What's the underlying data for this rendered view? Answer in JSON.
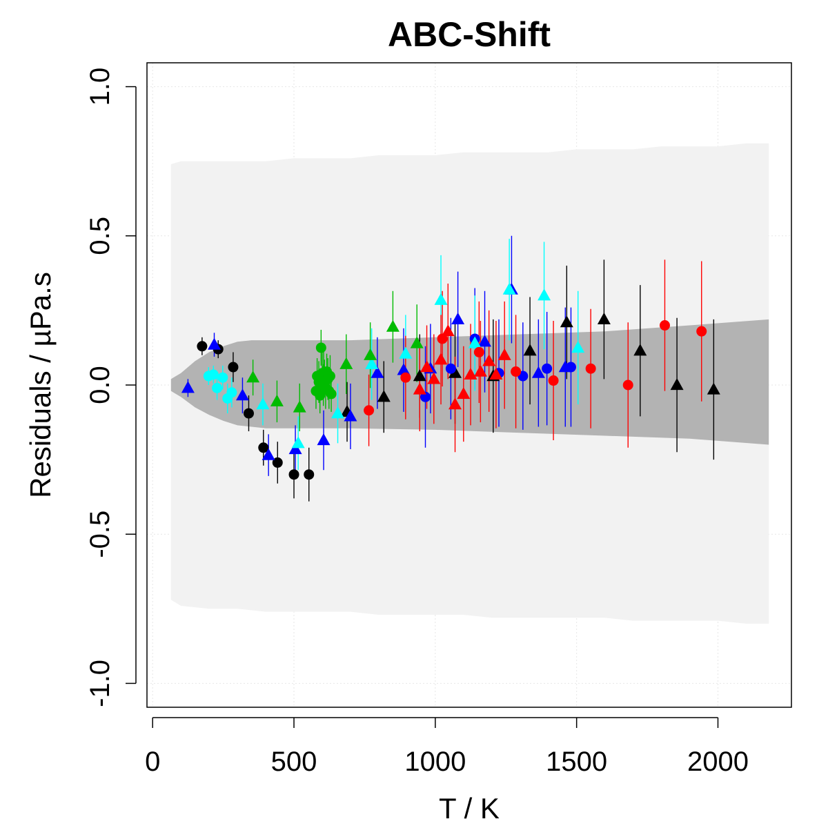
{
  "chart_data": {
    "type": "scatter",
    "title": "ABC-Shift",
    "xlabel": "T / K",
    "ylabel": "Residuals / µPa.s",
    "xlim": [
      -20,
      2260
    ],
    "ylim": [
      -1.08,
      1.08
    ],
    "x_ticks": [
      0,
      500,
      1000,
      1500,
      2000
    ],
    "x_tick_labels": [
      "0",
      "500",
      "1000",
      "1500",
      "2000"
    ],
    "y_ticks": [
      -1.0,
      -0.5,
      0.0,
      0.5,
      1.0
    ],
    "y_tick_labels": [
      "-1.0",
      "-0.5",
      "0.0",
      "0.5",
      "1.0"
    ],
    "grid": true,
    "colors": {
      "black": "#000000",
      "blue": "#0000ff",
      "cyan": "#00ffff",
      "green": "#00bb00",
      "red": "#ff0000",
      "outer_band": "#f2f2f2",
      "inner_band": "#b3b3b3",
      "grid": "#e6e6e6"
    },
    "outer_band": {
      "x": [
        65,
        100,
        200,
        300,
        400,
        500,
        600,
        700,
        800,
        900,
        1000,
        1100,
        1200,
        1300,
        1400,
        1500,
        1600,
        1700,
        1800,
        1900,
        2000,
        2100,
        2180
      ],
      "upper": [
        0.74,
        0.75,
        0.75,
        0.75,
        0.75,
        0.76,
        0.76,
        0.76,
        0.77,
        0.77,
        0.77,
        0.78,
        0.78,
        0.78,
        0.78,
        0.79,
        0.79,
        0.79,
        0.8,
        0.8,
        0.8,
        0.81,
        0.81
      ],
      "lower": [
        -0.72,
        -0.74,
        -0.75,
        -0.75,
        -0.76,
        -0.76,
        -0.76,
        -0.76,
        -0.77,
        -0.77,
        -0.77,
        -0.77,
        -0.78,
        -0.78,
        -0.78,
        -0.78,
        -0.78,
        -0.79,
        -0.79,
        -0.79,
        -0.79,
        -0.8,
        -0.8
      ]
    },
    "inner_band": {
      "x": [
        65,
        100,
        150,
        200,
        250,
        300,
        350,
        400,
        500,
        700,
        1000,
        1300,
        1600,
        1900,
        2180
      ],
      "upper": [
        0.02,
        0.04,
        0.08,
        0.11,
        0.13,
        0.145,
        0.15,
        0.15,
        0.15,
        0.15,
        0.16,
        0.17,
        0.18,
        0.2,
        0.22
      ],
      "lower": [
        -0.02,
        -0.04,
        -0.075,
        -0.1,
        -0.12,
        -0.135,
        -0.14,
        -0.145,
        -0.145,
        -0.145,
        -0.15,
        -0.16,
        -0.17,
        -0.18,
        -0.2
      ]
    },
    "series": [
      {
        "color": "black",
        "marker": "circle",
        "points": [
          {
            "x": 175,
            "y": 0.13,
            "err": 0.03
          },
          {
            "x": 232,
            "y": 0.12,
            "err": 0.03
          },
          {
            "x": 285,
            "y": 0.06,
            "err": 0.05
          },
          {
            "x": 340,
            "y": -0.095,
            "err": 0.06
          },
          {
            "x": 392,
            "y": -0.21,
            "err": 0.06
          },
          {
            "x": 442,
            "y": -0.26,
            "err": 0.07
          },
          {
            "x": 500,
            "y": -0.3,
            "err": 0.08
          },
          {
            "x": 553,
            "y": -0.3,
            "err": 0.09
          }
        ]
      },
      {
        "color": "black",
        "marker": "triangle",
        "points": [
          {
            "x": 688,
            "y": -0.09,
            "err": 0.1
          },
          {
            "x": 818,
            "y": -0.04,
            "err": 0.12
          },
          {
            "x": 945,
            "y": 0.03,
            "err": 0.14
          },
          {
            "x": 1070,
            "y": 0.04,
            "err": 0.17
          },
          {
            "x": 1205,
            "y": 0.03,
            "err": 0.19
          },
          {
            "x": 1335,
            "y": 0.115,
            "err": 0.18
          },
          {
            "x": 1465,
            "y": 0.21,
            "err": 0.19
          },
          {
            "x": 1597,
            "y": 0.22,
            "err": 0.2
          },
          {
            "x": 1725,
            "y": 0.115,
            "err": 0.22
          },
          {
            "x": 1855,
            "y": 0.0,
            "err": 0.225
          },
          {
            "x": 1985,
            "y": -0.015,
            "err": 0.235
          }
        ]
      },
      {
        "color": "blue",
        "marker": "triangle",
        "points": [
          {
            "x": 125,
            "y": -0.01,
            "err": 0.03
          },
          {
            "x": 218,
            "y": 0.135,
            "err": 0.04
          },
          {
            "x": 318,
            "y": -0.035,
            "err": 0.06
          },
          {
            "x": 410,
            "y": -0.235,
            "err": 0.07
          },
          {
            "x": 505,
            "y": -0.215,
            "err": 0.08
          },
          {
            "x": 605,
            "y": -0.185,
            "err": 0.1
          },
          {
            "x": 700,
            "y": -0.105,
            "err": 0.11
          },
          {
            "x": 795,
            "y": 0.04,
            "err": 0.12
          },
          {
            "x": 888,
            "y": 0.05,
            "err": 0.14
          },
          {
            "x": 983,
            "y": 0.055,
            "err": 0.15
          },
          {
            "x": 1080,
            "y": 0.22,
            "err": 0.16
          },
          {
            "x": 1175,
            "y": 0.145,
            "err": 0.17
          },
          {
            "x": 1270,
            "y": 0.32,
            "err": 0.18
          },
          {
            "x": 1365,
            "y": 0.04,
            "err": 0.18
          },
          {
            "x": 1460,
            "y": 0.06,
            "err": 0.2
          }
        ]
      },
      {
        "color": "blue",
        "marker": "circle",
        "points": [
          {
            "x": 965,
            "y": -0.04,
            "err": 0.17
          },
          {
            "x": 1055,
            "y": 0.055,
            "err": 0.17
          },
          {
            "x": 1140,
            "y": 0.155,
            "err": 0.17
          },
          {
            "x": 1225,
            "y": 0.04,
            "err": 0.18
          },
          {
            "x": 1310,
            "y": 0.03,
            "err": 0.18
          },
          {
            "x": 1395,
            "y": 0.055,
            "err": 0.19
          },
          {
            "x": 1480,
            "y": 0.06,
            "err": 0.2
          }
        ]
      },
      {
        "color": "cyan",
        "marker": "circle",
        "points": [
          {
            "x": 198,
            "y": 0.03,
            "err": 0.03
          },
          {
            "x": 215,
            "y": 0.035,
            "err": 0.03
          },
          {
            "x": 228,
            "y": -0.01,
            "err": 0.04
          },
          {
            "x": 248,
            "y": 0.025,
            "err": 0.04
          },
          {
            "x": 265,
            "y": -0.045,
            "err": 0.05
          },
          {
            "x": 280,
            "y": -0.025,
            "err": 0.05
          }
        ]
      },
      {
        "color": "cyan",
        "marker": "triangle",
        "points": [
          {
            "x": 390,
            "y": -0.065,
            "err": 0.07
          },
          {
            "x": 515,
            "y": -0.195,
            "err": 0.09
          },
          {
            "x": 655,
            "y": -0.095,
            "err": 0.1
          },
          {
            "x": 775,
            "y": 0.07,
            "err": 0.12
          },
          {
            "x": 895,
            "y": 0.105,
            "err": 0.13
          },
          {
            "x": 1020,
            "y": 0.285,
            "err": 0.15
          },
          {
            "x": 1140,
            "y": 0.14,
            "err": 0.16
          },
          {
            "x": 1262,
            "y": 0.32,
            "err": 0.17
          },
          {
            "x": 1385,
            "y": 0.3,
            "err": 0.18
          },
          {
            "x": 1505,
            "y": 0.125,
            "err": 0.19
          }
        ]
      },
      {
        "color": "green",
        "marker": "triangle",
        "points": [
          {
            "x": 355,
            "y": 0.025,
            "err": 0.06
          },
          {
            "x": 440,
            "y": -0.055,
            "err": 0.07
          },
          {
            "x": 520,
            "y": -0.075,
            "err": 0.08
          },
          {
            "x": 605,
            "y": 0.045,
            "err": 0.09
          },
          {
            "x": 685,
            "y": 0.07,
            "err": 0.1
          },
          {
            "x": 770,
            "y": 0.1,
            "err": 0.11
          },
          {
            "x": 850,
            "y": 0.195,
            "err": 0.12
          },
          {
            "x": 935,
            "y": 0.14,
            "err": 0.13
          }
        ]
      },
      {
        "color": "green",
        "marker": "circle",
        "points": [
          {
            "x": 578,
            "y": -0.02,
            "err": 0.06
          },
          {
            "x": 582,
            "y": 0.03,
            "err": 0.06
          },
          {
            "x": 588,
            "y": 0.01,
            "err": 0.07
          },
          {
            "x": 592,
            "y": -0.035,
            "err": 0.06
          },
          {
            "x": 596,
            "y": 0.125,
            "err": 0.06
          },
          {
            "x": 600,
            "y": 0.04,
            "err": 0.07
          },
          {
            "x": 604,
            "y": 0.0,
            "err": 0.07
          },
          {
            "x": 608,
            "y": 0.025,
            "err": 0.06
          },
          {
            "x": 612,
            "y": -0.01,
            "err": 0.07
          },
          {
            "x": 616,
            "y": 0.045,
            "err": 0.06
          },
          {
            "x": 620,
            "y": 0.02,
            "err": 0.07
          },
          {
            "x": 624,
            "y": -0.02,
            "err": 0.06
          },
          {
            "x": 628,
            "y": 0.03,
            "err": 0.07
          },
          {
            "x": 632,
            "y": -0.03,
            "err": 0.06
          }
        ]
      },
      {
        "color": "red",
        "marker": "circle",
        "points": [
          {
            "x": 765,
            "y": -0.085,
            "err": 0.12
          },
          {
            "x": 895,
            "y": 0.025,
            "err": 0.14
          },
          {
            "x": 1025,
            "y": 0.155,
            "err": 0.16
          },
          {
            "x": 1155,
            "y": 0.11,
            "err": 0.17
          },
          {
            "x": 1285,
            "y": 0.045,
            "err": 0.19
          },
          {
            "x": 1418,
            "y": 0.015,
            "err": 0.2
          },
          {
            "x": 1550,
            "y": 0.055,
            "err": 0.2
          },
          {
            "x": 1682,
            "y": 0.0,
            "err": 0.21
          },
          {
            "x": 1812,
            "y": 0.2,
            "err": 0.22
          },
          {
            "x": 1942,
            "y": 0.18,
            "err": 0.235
          }
        ]
      },
      {
        "color": "red",
        "marker": "triangle",
        "points": [
          {
            "x": 945,
            "y": -0.015,
            "err": 0.14
          },
          {
            "x": 970,
            "y": 0.06,
            "err": 0.14
          },
          {
            "x": 995,
            "y": 0.02,
            "err": 0.15
          },
          {
            "x": 1020,
            "y": 0.085,
            "err": 0.15
          },
          {
            "x": 1045,
            "y": 0.18,
            "err": 0.16
          },
          {
            "x": 1070,
            "y": -0.065,
            "err": 0.16
          },
          {
            "x": 1100,
            "y": -0.03,
            "err": 0.16
          },
          {
            "x": 1125,
            "y": 0.035,
            "err": 0.17
          },
          {
            "x": 1160,
            "y": 0.045,
            "err": 0.17
          },
          {
            "x": 1190,
            "y": 0.08,
            "err": 0.17
          },
          {
            "x": 1215,
            "y": 0.035,
            "err": 0.18
          },
          {
            "x": 1245,
            "y": 0.1,
            "err": 0.18
          }
        ]
      }
    ]
  }
}
